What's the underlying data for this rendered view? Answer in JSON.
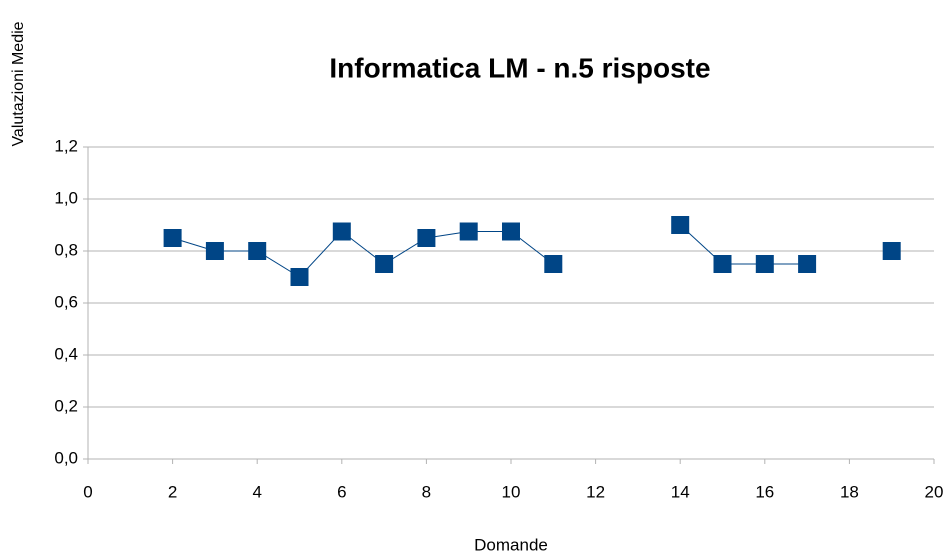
{
  "chart_data": {
    "type": "line",
    "title": "Informatica LM - n.5 risposte",
    "xlabel": "Domande",
    "ylabel": "Valutazioni Medie",
    "x": [
      2,
      3,
      4,
      5,
      6,
      7,
      8,
      9,
      10,
      11,
      12,
      13,
      14,
      15,
      16,
      17,
      18,
      19
    ],
    "series": [
      {
        "name": "Valutazioni Medie",
        "color": "#004586",
        "values": [
          0.85,
          0.8,
          0.8,
          0.7,
          0.875,
          0.75,
          0.85,
          0.875,
          0.875,
          0.75,
          null,
          null,
          0.9,
          0.75,
          0.75,
          0.75,
          null,
          0.8
        ]
      }
    ],
    "xlim": [
      0,
      20
    ],
    "xticks": [
      0,
      2,
      4,
      6,
      8,
      10,
      12,
      14,
      16,
      18,
      20
    ],
    "ylim": [
      0,
      1.2
    ],
    "yticks": [
      {
        "value": 0,
        "label": "0,0"
      },
      {
        "value": 0.2,
        "label": "0,2"
      },
      {
        "value": 0.4,
        "label": "0,4"
      },
      {
        "value": 0.6,
        "label": "0,6"
      },
      {
        "value": 0.8,
        "label": "0,8"
      },
      {
        "value": 1.0,
        "label": "1,0"
      },
      {
        "value": 1.2,
        "label": "1,2"
      }
    ],
    "grid": true
  }
}
